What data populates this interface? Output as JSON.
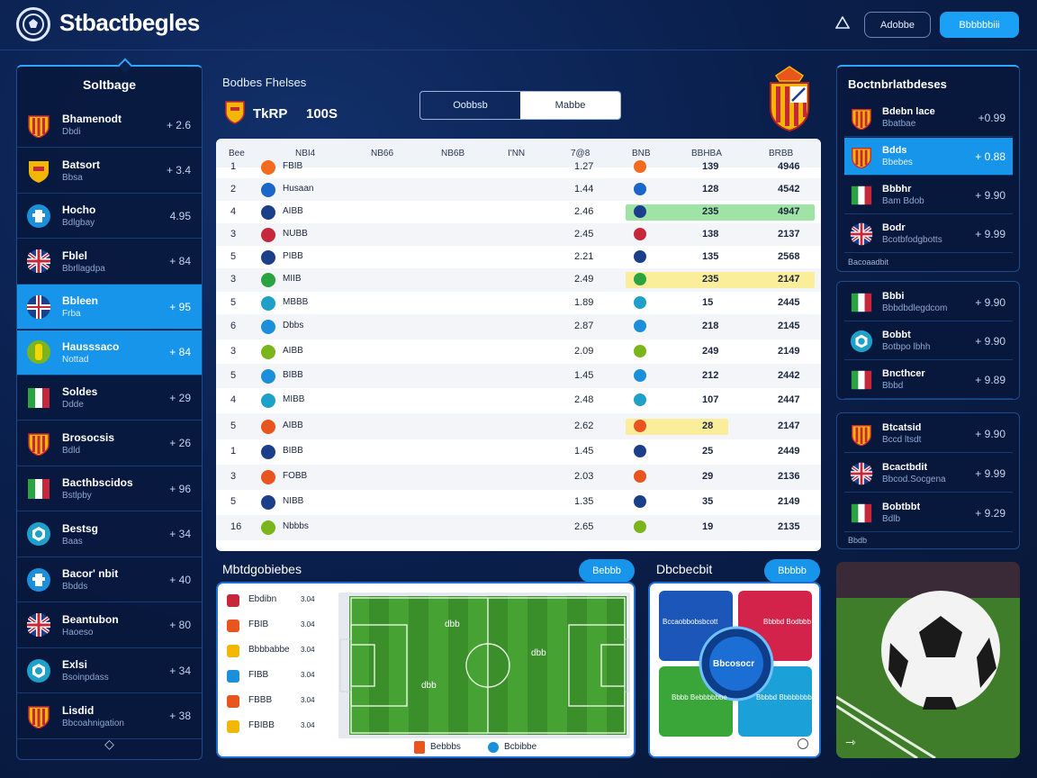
{
  "header": {
    "logo_icon": "soccer-ball-icon",
    "brand": "Stbactbegles",
    "warn_icon": "triangle-icon",
    "btn_outline": "Adobbe",
    "btn_fill": "Bbbbbbiii",
    "accent": "#1aa0f5"
  },
  "left": {
    "title": "Soltbage",
    "items": [
      {
        "name": "Bhamenodt",
        "sub": "Dbdi",
        "odds": "+ 2.6",
        "flag": "spain"
      },
      {
        "name": "Batsort",
        "sub": "Bbsa",
        "odds": "+ 3.4",
        "flag": "shield-yellow"
      },
      {
        "name": "Hocho",
        "sub": "Bdlgbay",
        "odds": "4.95",
        "flag": "blue-circle"
      },
      {
        "name": "Fblel",
        "sub": "Bbrllagdpa",
        "odds": "+ 84",
        "flag": "uk"
      },
      {
        "name": "Bbleen",
        "sub": "Frba",
        "odds": "+ 95",
        "flag": "cross",
        "selected": true
      },
      {
        "name": "Hausssaco",
        "sub": "Nottad",
        "odds": "+ 84",
        "flag": "green-yellow",
        "selected": true
      },
      {
        "name": "Soldes",
        "sub": "Ddde",
        "odds": "+ 29",
        "flag": "italy"
      },
      {
        "name": "Brosocsis",
        "sub": "Bdld",
        "odds": "+ 26",
        "flag": "spain"
      },
      {
        "name": "Bacthbscidos",
        "sub": "Bstlpby",
        "odds": "+ 96",
        "flag": "italy"
      },
      {
        "name": "Bestsg",
        "sub": "Baas",
        "odds": "+ 34",
        "flag": "teal-circle"
      },
      {
        "name": "Bacor' nbit",
        "sub": "Bbdds",
        "odds": "+ 40",
        "flag": "blue-circle"
      },
      {
        "name": "Beantubon",
        "sub": "Haoeso",
        "odds": "+ 80",
        "flag": "uk"
      },
      {
        "name": "Exlsi",
        "sub": "Bsoinpdass",
        "odds": "+ 34",
        "flag": "teal-circle"
      },
      {
        "name": "Lisdid",
        "sub": "Bbcoahnigation",
        "odds": "+ 38",
        "flag": "spain"
      }
    ],
    "footer_icon": "diamond-icon"
  },
  "center": {
    "title": "Bodbes Fhelses",
    "code": "TkRP",
    "number": "100S",
    "seg_a": "Oobbsb",
    "seg_b": "Mabbe",
    "crest_icon": "crest-icon"
  },
  "table": {
    "headers": [
      "Bee",
      "NBI4",
      "NB66",
      "NB6B",
      "I'NN",
      "7@8",
      "BNB",
      "BBHBA",
      "BRBB"
    ],
    "rows": [
      {
        "rank": "1",
        "team": "FBIB",
        "odds": "1.27",
        "val": "139",
        "total": "4946",
        "icon": "#f26b1f",
        "hl": ""
      },
      {
        "rank": "2",
        "team": "Husaan",
        "odds": "1.44",
        "val": "128",
        "total": "4542",
        "icon": "#1b66c9",
        "hl": ""
      },
      {
        "rank": "4",
        "team": "AIBB",
        "odds": "2.46",
        "val": "235",
        "total": "4947",
        "icon": "#1b3f8a",
        "hl": "green"
      },
      {
        "rank": "3",
        "team": "NUBB",
        "odds": "2.45",
        "val": "138",
        "total": "2137",
        "icon": "#c7273a",
        "hl": ""
      },
      {
        "rank": "5",
        "team": "PIBB",
        "odds": "2.21",
        "val": "135",
        "total": "2568",
        "icon": "#1b3f8a",
        "hl": ""
      },
      {
        "rank": "3",
        "team": "MIIB",
        "odds": "2.49",
        "val": "235",
        "total": "2147",
        "icon": "#2aa341",
        "hl": "yellow"
      },
      {
        "rank": "5",
        "team": "MBBB",
        "odds": "1.89",
        "val": "15",
        "total": "2445",
        "icon": "#1fa0c9",
        "hl": ""
      },
      {
        "rank": "6",
        "team": "Dbbs",
        "odds": "2.87",
        "val": "218",
        "total": "2145",
        "icon": "#1b8fd9",
        "hl": ""
      },
      {
        "rank": "3",
        "team": "AIBB",
        "odds": "2.09",
        "val": "249",
        "total": "2149",
        "icon": "#7ab51d",
        "hl": ""
      },
      {
        "rank": "5",
        "team": "BIBB",
        "odds": "1.45",
        "val": "212",
        "total": "2442",
        "icon": "#1b8fd9",
        "hl": ""
      },
      {
        "rank": "4",
        "team": "MIBB",
        "odds": "2.48",
        "val": "107",
        "total": "2447",
        "icon": "#1fa0c9",
        "hl": ""
      },
      {
        "rank": "5",
        "team": "AIBB",
        "odds": "2.62",
        "val": "28",
        "total": "2147",
        "icon": "#e8551e",
        "hl": "yellow2"
      },
      {
        "rank": "1",
        "team": "BIBB",
        "odds": "1.45",
        "val": "25",
        "total": "2449",
        "icon": "#1b3f8a",
        "hl": ""
      },
      {
        "rank": "3",
        "team": "FOBB",
        "odds": "2.03",
        "val": "29",
        "total": "2136",
        "icon": "#e8551e",
        "hl": ""
      },
      {
        "rank": "5",
        "team": "NIBB",
        "odds": "1.35",
        "val": "35",
        "total": "2149",
        "icon": "#1b3f8a",
        "hl": ""
      },
      {
        "rank": "16",
        "team": "Nbbbs",
        "odds": "2.65",
        "val": "19",
        "total": "2135",
        "icon": "#7ab51d",
        "hl": ""
      }
    ]
  },
  "right": {
    "title": "Boctnbrlatbdeses",
    "group1": [
      {
        "name": "Bdebn lace",
        "sub": "Bbatbae",
        "odds": "+0.99",
        "flag": "spain"
      },
      {
        "name": "Bdds",
        "sub": "Bbebes",
        "odds": "+ 0.88",
        "flag": "spain",
        "selected": true
      },
      {
        "name": "Bbbhr",
        "sub": "Bam Bdob",
        "odds": "+ 9.90",
        "flag": "italy"
      },
      {
        "name": "Bodr",
        "sub": "Bcotbfodgbotts",
        "odds": "+ 9.99",
        "flag": "uk"
      }
    ],
    "footer1": "Bacoaadbit",
    "group2": [
      {
        "name": "Bbbi",
        "sub": "Bbbdbdlegdcom",
        "odds": "+ 9.90",
        "flag": "italy"
      },
      {
        "name": "Bobbt",
        "sub": "Botbpo lbhh",
        "odds": "+ 9.90",
        "flag": "teal-circle"
      },
      {
        "name": "Bncthcer",
        "sub": "Bbbd",
        "odds": "+ 9.89",
        "flag": "italy"
      }
    ],
    "group3": [
      {
        "name": "Btcatsid",
        "sub": "Bccd ltsdt",
        "odds": "+ 9.90",
        "flag": "spain"
      },
      {
        "name": "Bcactbdit",
        "sub": "Bbcod.Socgena",
        "odds": "+ 9.99",
        "flag": "uk"
      },
      {
        "name": "Bobtbbt",
        "sub": "Bdlb",
        "odds": "+ 9.29",
        "flag": "italy"
      }
    ],
    "footer3": "Bbdb"
  },
  "bottom": {
    "lineup_title": "Mbtdgobiebes",
    "lineup_btn": "Bebbb",
    "players": [
      {
        "name": "Ebdibn",
        "icon": "#c7273a",
        "v": "3.04"
      },
      {
        "name": "FBIB",
        "icon": "#e8551e",
        "v": "3.04"
      },
      {
        "name": "Bbbbabbe",
        "icon": "#f2b705",
        "v": "3.04"
      },
      {
        "name": "FIBB",
        "icon": "#1b8fd9",
        "v": "3.04"
      },
      {
        "name": "FBBB",
        "icon": "#e8551e",
        "v": "3.04"
      },
      {
        "name": "FBIBB",
        "icon": "#f2b705",
        "v": "3.04"
      }
    ],
    "pitch_labels": [
      "dbb",
      "dbb",
      "dbb"
    ],
    "legend_a": "Bebbbs",
    "legend_b": "Bcbibbe",
    "stats_title": "Dbcbecbit",
    "stats_btn": "Bbbbb",
    "quad_tl": "Bccaobbobsbcott",
    "quad_tr": "Bbbbd Bodbbb",
    "quad_bl": "Bbbb Bebbbbbbe",
    "quad_br": "Bbbbd Bbbbbbbb",
    "center_label": "Bbcosocr",
    "photo_icon": "arrow-icon"
  }
}
